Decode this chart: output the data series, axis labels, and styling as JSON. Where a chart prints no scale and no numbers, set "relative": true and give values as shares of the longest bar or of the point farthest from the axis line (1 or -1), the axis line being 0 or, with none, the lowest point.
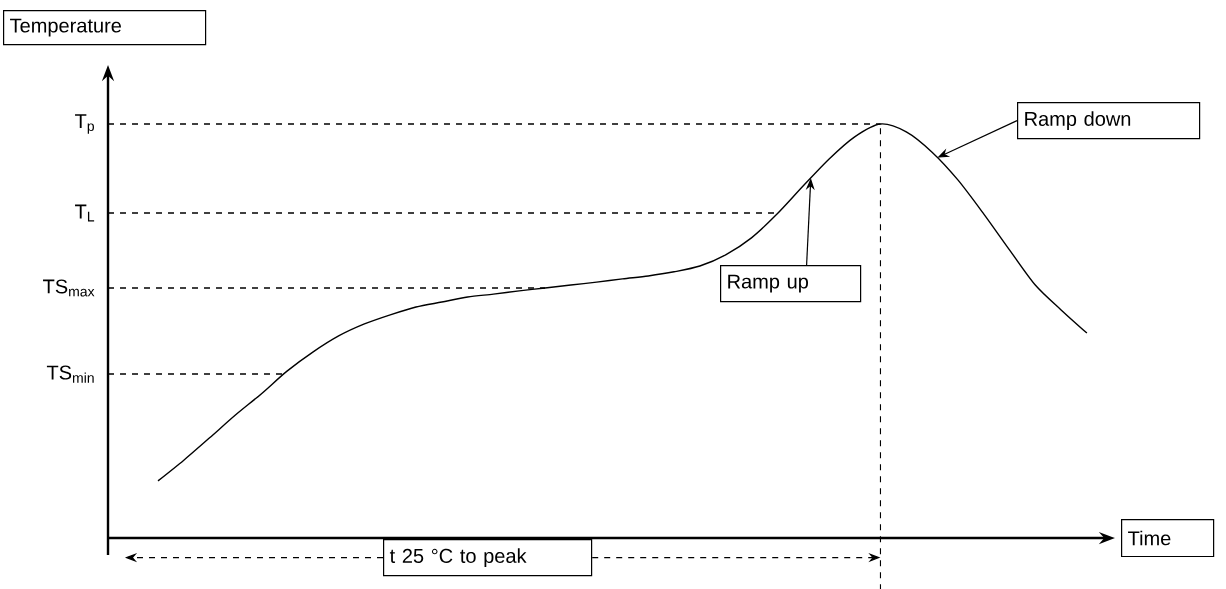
{
  "chart_data": {
    "type": "line",
    "xlabel": "Time",
    "ylabel": "Temperature",
    "relative": true,
    "marker": "none",
    "line_style": "solid",
    "categories": [
      null,
      null,
      null,
      null,
      null,
      null,
      null,
      null,
      null,
      null,
      null,
      null,
      null,
      null,
      null,
      null,
      null,
      null,
      null,
      null,
      null,
      null,
      null,
      null,
      null,
      null,
      null,
      null,
      null,
      null,
      null,
      null,
      null,
      null,
      null,
      null,
      null
    ],
    "series": [
      {
        "color": "#000000",
        "values": [
          0.138,
          0.188,
          0.242,
          0.297,
          0.348,
          0.403,
          0.449,
          0.488,
          0.517,
          0.539,
          0.558,
          0.57,
          0.582,
          0.589,
          0.597,
          0.604,
          0.611,
          0.618,
          0.626,
          0.633,
          0.643,
          0.657,
          0.684,
          0.725,
          0.783,
          0.85,
          0.915,
          0.969,
          1,
          0.981,
          0.932,
          0.865,
          0.783,
          0.696,
          0.611,
          0.551,
          0.495
        ]
      }
    ],
    "ref_lines": [
      {
        "axis": "y",
        "value": 1,
        "label": "T$_{p}$",
        "color": "#000000",
        "line_style": "dashed"
      },
      {
        "axis": "y",
        "value": 0.785,
        "label": "T$_{L}$",
        "color": "#000000",
        "line_style": "dashed"
      },
      {
        "axis": "y",
        "value": 0.604,
        "label": "TS$_{max}$",
        "color": "#000000",
        "line_style": "dashed"
      },
      {
        "axis": "y",
        "value": 0.396,
        "label": "TS$_{min}$",
        "color": "#000000",
        "line_style": "dashed"
      }
    ],
    "annotations": [
      "Ramp down",
      "Ramp up",
      "t 25 °C to peak"
    ]
  }
}
